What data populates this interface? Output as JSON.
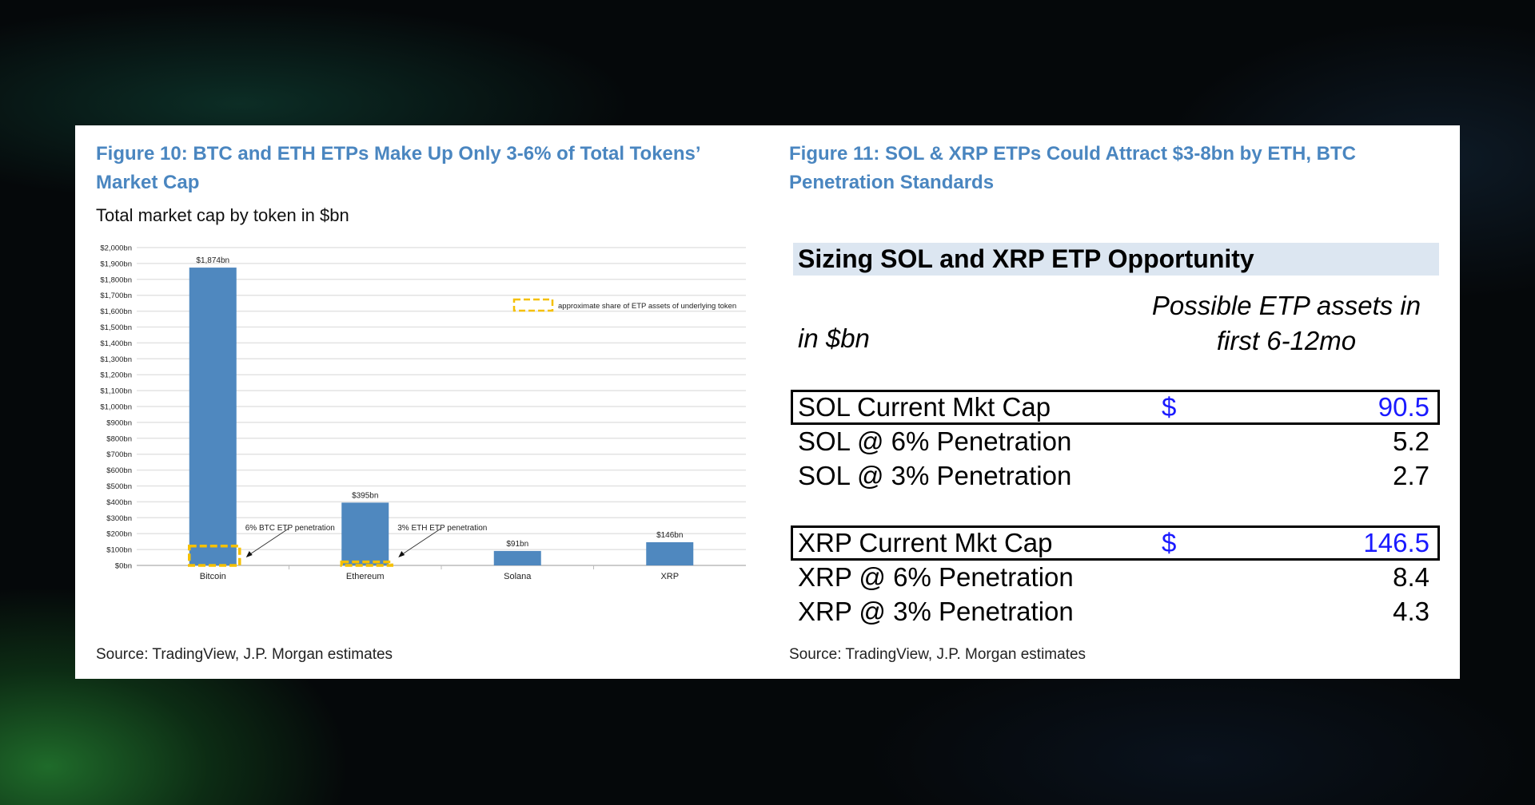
{
  "left_figure": {
    "title_line1": "Figure 10: BTC and ETH ETPs Make Up Only 3-6% of Total Tokens’",
    "title_line2": "Market Cap",
    "subtitle": "Total market cap by token in $bn",
    "source": "Source: TradingView, J.P. Morgan estimates"
  },
  "chart_data": {
    "type": "bar",
    "categories": [
      "Bitcoin",
      "Ethereum",
      "Solana",
      "XRP"
    ],
    "values": [
      1874,
      395,
      91,
      146
    ],
    "data_labels": [
      "$1,874bn",
      "$395bn",
      "$91bn",
      "$146bn"
    ],
    "ylim": [
      0,
      2000
    ],
    "yticks": [
      0,
      100,
      200,
      300,
      400,
      500,
      600,
      700,
      800,
      900,
      1000,
      1100,
      1200,
      1300,
      1400,
      1500,
      1600,
      1700,
      1800,
      1900,
      2000
    ],
    "ytick_labels": [
      "$0bn",
      "$100bn",
      "$200bn",
      "$300bn",
      "$400bn",
      "$500bn",
      "$600bn",
      "$700bn",
      "$800bn",
      "$900bn",
      "$1,000bn",
      "$1,100bn",
      "$1,200bn",
      "$1,300bn",
      "$1,400bn",
      "$1,500bn",
      "$1,600bn",
      "$1,700bn",
      "$1,800bn",
      "$1,900bn",
      "$2,000bn"
    ],
    "grid": true,
    "bar_color": "#4f88bf",
    "etp_share": [
      {
        "category": "Bitcoin",
        "value": 112,
        "label": "6% BTC ETP penetration"
      },
      {
        "category": "Ethereum",
        "value": 12,
        "label": "3% ETH ETP penetration"
      }
    ],
    "etp_color": "#f5c000",
    "legend": {
      "label": "approximate share of ETP assets of underlying token",
      "placement": "top-right"
    }
  },
  "right_figure": {
    "title_line1": "Figure 11: SOL & XRP ETPs Could Attract $3-8bn by ETH, BTC",
    "title_line2": "Penetration Standards",
    "table_title": "Sizing SOL and XRP ETP Opportunity",
    "unit_label": "in $bn",
    "col_header_line1": "Possible ETP assets in",
    "col_header_line2": "first 6-12mo",
    "rows": [
      {
        "label": "SOL Current Mkt Cap",
        "currency": "$",
        "value": "90.5"
      },
      {
        "label": "SOL @ 6% Penetration",
        "value": "5.2"
      },
      {
        "label": "SOL @ 3% Penetration",
        "value": "2.7"
      },
      {
        "label": "XRP Current Mkt Cap",
        "currency": "$",
        "value": "146.5"
      },
      {
        "label": "XRP @ 6% Penetration",
        "value": "8.4"
      },
      {
        "label": "XRP @ 3% Penetration",
        "value": "4.3"
      }
    ],
    "source": "Source: TradingView, J.P. Morgan estimates"
  }
}
